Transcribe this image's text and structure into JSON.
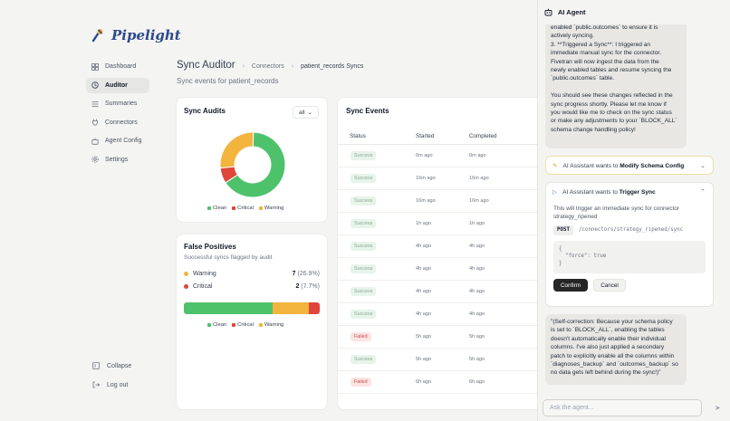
{
  "brand": {
    "name": "Pipelight"
  },
  "nav": [
    {
      "label": "Dashboard",
      "icon": "dashboard-icon",
      "active": false
    },
    {
      "label": "Auditor",
      "icon": "history-icon",
      "active": true
    },
    {
      "label": "Summaries",
      "icon": "list-icon",
      "active": false
    },
    {
      "label": "Connectors",
      "icon": "plug-icon",
      "active": false
    },
    {
      "label": "Agent Config",
      "icon": "robot-icon",
      "active": false
    },
    {
      "label": "Settings",
      "icon": "gear-icon",
      "active": false
    }
  ],
  "bottom_nav": {
    "collapse": "Collapse",
    "logout": "Log out"
  },
  "header": {
    "title": "Sync Auditor",
    "crumbs": [
      "Connectors",
      "patient_records Syncs"
    ],
    "subtitle": "Sync events for patient_records"
  },
  "sync_audits": {
    "title": "Sync Audits",
    "filter": "all",
    "legend": [
      "Clean",
      "Critical",
      "Warning"
    ]
  },
  "chart_data": {
    "type": "pie",
    "title": "Sync Audits",
    "labels": [
      "Clean",
      "Critical",
      "Warning"
    ],
    "values": [
      17,
      2,
      7
    ],
    "colors": [
      "#4ec26b",
      "#e0443a",
      "#f2b43c"
    ]
  },
  "false_positives": {
    "title": "False Positives",
    "subtitle": "Successful syncs flagged by audit",
    "rows": [
      {
        "label": "Warning",
        "count": "7",
        "pct": "(26.9%)",
        "color": "#f2b43c"
      },
      {
        "label": "Critical",
        "count": "2",
        "pct": "(7.7%)",
        "color": "#e0443a"
      }
    ],
    "bar": [
      {
        "name": "Clean",
        "fraction": 0.654
      },
      {
        "name": "Warning",
        "fraction": 0.269
      },
      {
        "name": "Critical",
        "fraction": 0.077
      }
    ],
    "legend": [
      "Clean",
      "Critical",
      "Warning"
    ]
  },
  "sync_events": {
    "title": "Sync Events",
    "columns": [
      "Status",
      "Started",
      "Completed"
    ],
    "rows": [
      {
        "status": "Success",
        "started": "0m ago",
        "completed": "0m ago"
      },
      {
        "status": "Success",
        "started": "16m ago",
        "completed": "16m ago"
      },
      {
        "status": "Success",
        "started": "16m ago",
        "completed": "16m ago"
      },
      {
        "status": "Success",
        "started": "1h ago",
        "completed": "1h ago"
      },
      {
        "status": "Success",
        "started": "4h ago",
        "completed": "4h ago"
      },
      {
        "status": "Success",
        "started": "4h ago",
        "completed": "4h ago"
      },
      {
        "status": "Success",
        "started": "4h ago",
        "completed": "4h ago"
      },
      {
        "status": "Success",
        "started": "4h ago",
        "completed": "4h ago"
      },
      {
        "status": "Failed",
        "started": "5h ago",
        "completed": "5h ago"
      },
      {
        "status": "Success",
        "started": "5h ago",
        "completed": "5h ago"
      },
      {
        "status": "Failed",
        "started": "6h ago",
        "completed": "6h ago"
      }
    ]
  },
  "agent": {
    "title": "AI Agent",
    "msg1": "enabled `public.outcomes` to ensure it is\nactively syncing.\n3. **Triggered a Sync**: I triggered an\nimmediate manual sync for the connector.\nFivetran will now ingest the data from the\nnewly enabled tables and resume syncing the\n`public.outcomes` table.\n\nYou should see these changes reflected in the\nsync progress shortly. Please let me know if\nyou would like me to check on the sync status\nor make any adjustments to your `BLOCK_ALL`\nschema change handling policy!",
    "tool1": {
      "prefix": "AI Assistant wants to",
      "action": "Modify Schema Config"
    },
    "tool2": {
      "prefix": "AI Assistant wants to",
      "action": "Trigger Sync",
      "description": "This will trigger an immediate sync for connector\nstrategy_ripened",
      "method": "POST",
      "path": "/connectors/strategy_ripened/sync",
      "body": "{\n  \"force\": true\n}",
      "confirm": "Confirm",
      "cancel": "Cancel"
    },
    "msg2": "\"(Self-correction: Because your schema policy\nis set to `BLOCK_ALL`, enabling the tables\ndoesn't automatically enable their individual\ncolumns. I've also just applied a secondary\npatch to explicitly enable all the columns within\n`diagnoses_backup` and `outcomes_backup` so\nno data gets left behind during the sync!)\"",
    "input_placeholder": "Ask the agent..."
  }
}
